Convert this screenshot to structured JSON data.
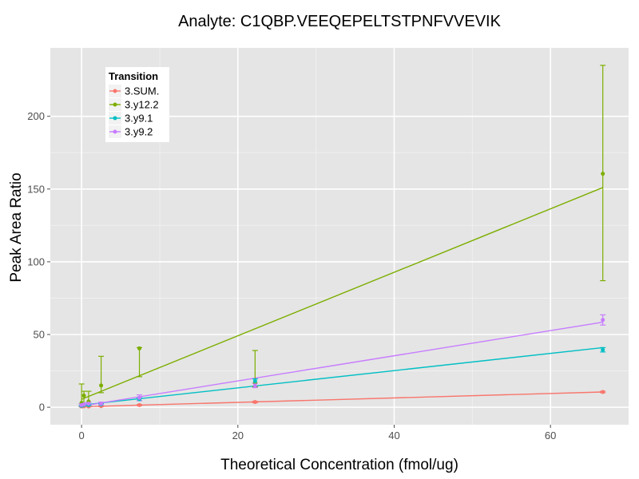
{
  "chart_data": {
    "type": "line",
    "title": "Analyte: C1QBP.VEEQEPELTSTPNFVVEVIK",
    "xlabel": "Theoretical Concentration (fmol/ug)",
    "ylabel": "Peak Area Ratio",
    "xlim": [
      -4,
      70
    ],
    "ylim": [
      -12,
      247
    ],
    "xticks": [
      0,
      20,
      40,
      60
    ],
    "yticks": [
      0,
      50,
      100,
      150,
      200
    ],
    "grid": true,
    "legend": {
      "title": "Transition",
      "position": "top-left"
    },
    "series": [
      {
        "name": "3.SUM.",
        "color": "#F8766D",
        "fit": [
          [
            0,
            0.3
          ],
          [
            66.7,
            10.5
          ]
        ],
        "points": [
          {
            "x": 0,
            "y": 0.5,
            "lo": 0.2,
            "hi": 0.8
          },
          {
            "x": 0.3,
            "y": 0.6,
            "lo": 0.3,
            "hi": 0.9
          },
          {
            "x": 0.9,
            "y": 0.5,
            "lo": 0.2,
            "hi": 0.9
          },
          {
            "x": 2.5,
            "y": 0.8,
            "lo": 0.4,
            "hi": 1.2
          },
          {
            "x": 7.4,
            "y": 1.5,
            "lo": 1.1,
            "hi": 1.9
          },
          {
            "x": 22.2,
            "y": 3.6,
            "lo": 3.1,
            "hi": 4.1
          },
          {
            "x": 66.7,
            "y": 10.5,
            "lo": 10.0,
            "hi": 11.0
          }
        ]
      },
      {
        "name": "3.y12.2",
        "color": "#7CAE00",
        "fit": [
          [
            0,
            5.5
          ],
          [
            66.7,
            151
          ]
        ],
        "points": [
          {
            "x": 0,
            "y": 3,
            "lo": 0.5,
            "hi": 16
          },
          {
            "x": 0.3,
            "y": 8,
            "lo": 1.5,
            "hi": 11
          },
          {
            "x": 0.9,
            "y": 4,
            "lo": 1,
            "hi": 11
          },
          {
            "x": 2.5,
            "y": 15,
            "lo": 10,
            "hi": 35
          },
          {
            "x": 7.4,
            "y": 40.5,
            "lo": 21,
            "hi": 41
          },
          {
            "x": 22.2,
            "y": 17,
            "lo": 14,
            "hi": 39
          },
          {
            "x": 66.7,
            "y": 160.5,
            "lo": 87,
            "hi": 235
          }
        ]
      },
      {
        "name": "3.y9.1",
        "color": "#00BFC4",
        "fit": [
          [
            0,
            1.5
          ],
          [
            66.7,
            41
          ]
        ],
        "points": [
          {
            "x": 0,
            "y": 1,
            "lo": 0.5,
            "hi": 1.5
          },
          {
            "x": 0.3,
            "y": 1.5,
            "lo": 1,
            "hi": 2
          },
          {
            "x": 0.9,
            "y": 1.5,
            "lo": 1,
            "hi": 2
          },
          {
            "x": 2.5,
            "y": 2,
            "lo": 1.5,
            "hi": 2.5
          },
          {
            "x": 7.4,
            "y": 5.5,
            "lo": 4.5,
            "hi": 6.5
          },
          {
            "x": 22.2,
            "y": 18,
            "lo": 16.5,
            "hi": 19.5
          },
          {
            "x": 66.7,
            "y": 39.5,
            "lo": 38,
            "hi": 41
          }
        ]
      },
      {
        "name": "3.y9.2",
        "color": "#C77CFF",
        "fit": [
          [
            0,
            0.8
          ],
          [
            66.7,
            58.5
          ]
        ],
        "points": [
          {
            "x": 0,
            "y": 1.5,
            "lo": 1,
            "hi": 2.5
          },
          {
            "x": 0.3,
            "y": 2,
            "lo": 1.5,
            "hi": 3
          },
          {
            "x": 0.9,
            "y": 2.5,
            "lo": 1.5,
            "hi": 3.5
          },
          {
            "x": 2.5,
            "y": 2.5,
            "lo": 1.5,
            "hi": 3.5
          },
          {
            "x": 7.4,
            "y": 6.5,
            "lo": 4.5,
            "hi": 8.5
          },
          {
            "x": 22.2,
            "y": 15,
            "lo": 13.5,
            "hi": 16.5
          },
          {
            "x": 66.7,
            "y": 60,
            "lo": 56.5,
            "hi": 63.5
          }
        ]
      }
    ]
  }
}
